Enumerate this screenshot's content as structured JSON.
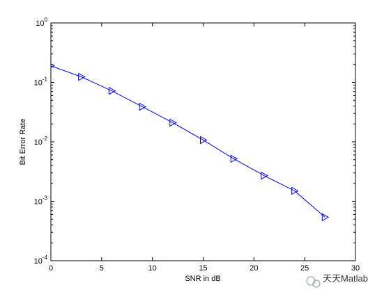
{
  "chart_data": {
    "type": "line",
    "xlabel": "SNR in dB",
    "ylabel": "Bit Error Rate",
    "x": [
      0,
      3,
      6,
      9,
      12,
      15,
      18,
      21,
      24,
      27
    ],
    "series": [
      {
        "color": "#0000ff",
        "marker": "triangle-right",
        "values": [
          0.19,
          0.124,
          0.072,
          0.039,
          0.021,
          0.0107,
          0.0052,
          0.0027,
          0.0015,
          0.00054
        ]
      }
    ],
    "xlim": [
      0,
      30
    ],
    "xticks": [
      0,
      5,
      10,
      15,
      20,
      25,
      30
    ],
    "ylim": [
      0.0001,
      1
    ],
    "yscale": "log",
    "yticks": [
      {
        "value": 0.0001,
        "label": "10^-4"
      },
      {
        "value": 0.001,
        "label": "10^-3"
      },
      {
        "value": 0.01,
        "label": "10^-2"
      },
      {
        "value": 0.1,
        "label": "10^-1"
      },
      {
        "value": 1,
        "label": "10^0"
      }
    ],
    "grid": false,
    "watermark": "天天Matlab"
  }
}
